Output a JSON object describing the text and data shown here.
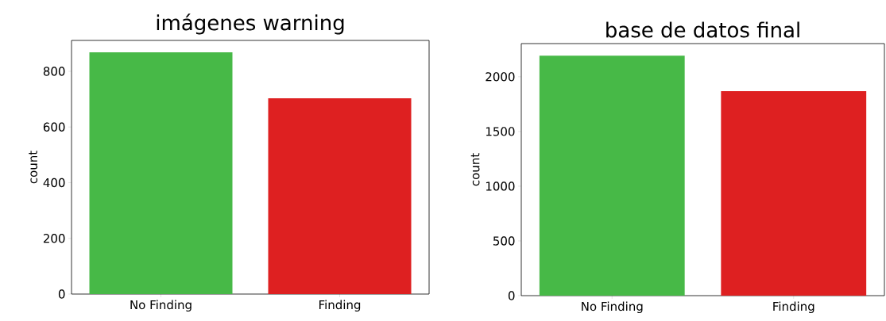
{
  "chart_data": [
    {
      "type": "bar",
      "title": "imágenes warning",
      "ylabel": "count",
      "categories": [
        "No Finding",
        "Finding"
      ],
      "values": [
        868,
        703
      ],
      "colors": [
        "#47b947",
        "#de2021"
      ],
      "ylim": [
        0,
        911
      ],
      "yticks": [
        0,
        200,
        400,
        600,
        800
      ]
    },
    {
      "type": "bar",
      "title": "base de datos final",
      "ylabel": "count",
      "categories": [
        "No Finding",
        "Finding"
      ],
      "values": [
        2193,
        1869
      ],
      "colors": [
        "#47b947",
        "#de2021"
      ],
      "ylim": [
        0,
        2303
      ],
      "yticks": [
        0,
        500,
        1000,
        1500,
        2000
      ]
    }
  ]
}
